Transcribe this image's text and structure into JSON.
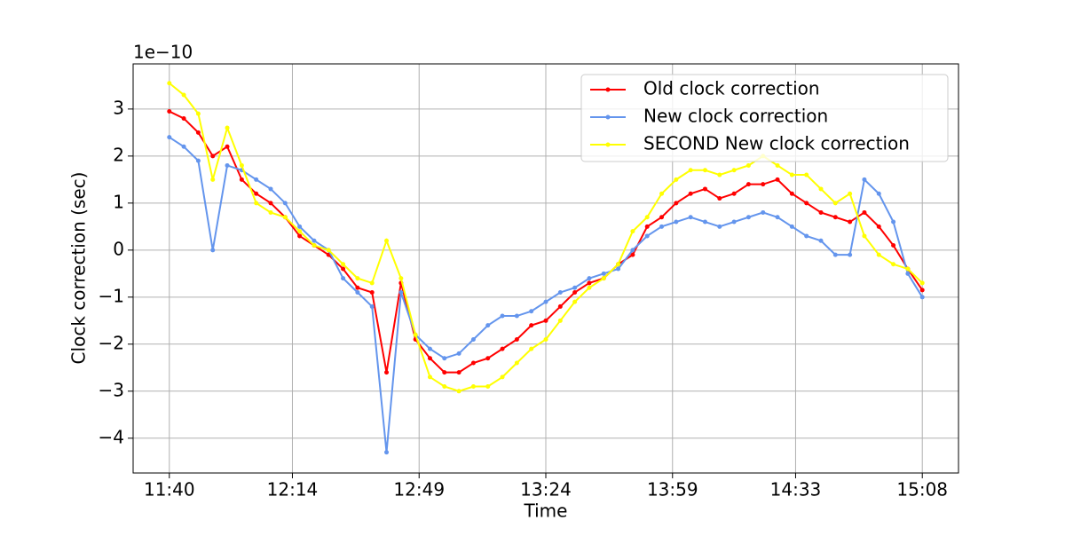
{
  "chart_data": {
    "type": "line",
    "y_label": "Clock correction (sec)",
    "x_label": "Time",
    "y_offset_label": "1e−10",
    "x": [
      "11:40",
      "11:44",
      "11:48",
      "11:52",
      "11:56",
      "12:00",
      "12:04",
      "12:08",
      "12:12",
      "12:16",
      "12:20",
      "12:24",
      "12:28",
      "12:32",
      "12:36",
      "12:40",
      "12:44",
      "12:48",
      "12:52",
      "12:56",
      "13:00",
      "13:04",
      "13:08",
      "13:12",
      "13:16",
      "13:20",
      "13:24",
      "13:28",
      "13:32",
      "13:36",
      "13:40",
      "13:44",
      "13:48",
      "13:52",
      "13:56",
      "14:00",
      "14:04",
      "14:08",
      "14:12",
      "14:16",
      "14:20",
      "14:24",
      "14:28",
      "14:32",
      "14:36",
      "14:40",
      "14:44",
      "14:48",
      "14:52",
      "14:56",
      "15:00",
      "15:04",
      "15:08"
    ],
    "series": [
      {
        "name": "Old clock correction",
        "color": "#ff0000",
        "values": [
          2.95,
          2.8,
          2.5,
          2.0,
          2.2,
          1.5,
          1.2,
          1.0,
          0.7,
          0.3,
          0.1,
          -0.1,
          -0.4,
          -0.8,
          -0.9,
          -2.6,
          -0.7,
          -1.9,
          -2.3,
          -2.6,
          -2.6,
          -2.4,
          -2.3,
          -2.1,
          -1.9,
          -1.6,
          -1.5,
          -1.2,
          -0.9,
          -0.7,
          -0.6,
          -0.3,
          -0.1,
          0.5,
          0.7,
          1.0,
          1.2,
          1.3,
          1.1,
          1.2,
          1.4,
          1.4,
          1.5,
          1.2,
          1.0,
          0.8,
          0.7,
          0.6,
          0.8,
          0.5,
          0.1,
          -0.4,
          -0.85
        ]
      },
      {
        "name": "New clock correction",
        "color": "#6495ed",
        "values": [
          2.4,
          2.2,
          1.9,
          0.0,
          1.8,
          1.7,
          1.5,
          1.3,
          1.0,
          0.5,
          0.2,
          0.0,
          -0.6,
          -0.9,
          -1.2,
          -4.3,
          -0.9,
          -1.8,
          -2.1,
          -2.3,
          -2.2,
          -1.9,
          -1.6,
          -1.4,
          -1.4,
          -1.3,
          -1.1,
          -0.9,
          -0.8,
          -0.6,
          -0.5,
          -0.4,
          0.0,
          0.3,
          0.5,
          0.6,
          0.7,
          0.6,
          0.5,
          0.6,
          0.7,
          0.8,
          0.7,
          0.5,
          0.3,
          0.2,
          -0.1,
          -0.1,
          1.5,
          1.2,
          0.6,
          -0.5,
          -1.0
        ]
      },
      {
        "name": "SECOND New clock correction",
        "color": "#ffff00",
        "values": [
          3.55,
          3.3,
          2.9,
          1.5,
          2.6,
          1.8,
          1.0,
          0.8,
          0.7,
          0.4,
          0.1,
          0.0,
          -0.3,
          -0.6,
          -0.7,
          0.2,
          -0.6,
          -1.8,
          -2.7,
          -2.9,
          -3.0,
          -2.9,
          -2.9,
          -2.7,
          -2.4,
          -2.1,
          -1.9,
          -1.5,
          -1.1,
          -0.8,
          -0.6,
          -0.3,
          0.4,
          0.7,
          1.2,
          1.5,
          1.7,
          1.7,
          1.6,
          1.7,
          1.8,
          2.0,
          1.8,
          1.6,
          1.6,
          1.3,
          1.0,
          1.2,
          0.3,
          -0.1,
          -0.3,
          -0.4,
          -0.7
        ]
      }
    ],
    "xlim": [
      "11:30",
      "15:18"
    ],
    "xticks": [
      "11:40",
      "12:14",
      "12:49",
      "13:24",
      "13:59",
      "14:33",
      "15:08"
    ],
    "ylim": [
      -4.74,
      3.96
    ],
    "yticks": [
      {
        "value": -4,
        "label": "−4"
      },
      {
        "value": -3,
        "label": "−3"
      },
      {
        "value": -2,
        "label": "−2"
      },
      {
        "value": -1,
        "label": "−1"
      },
      0,
      1,
      2,
      3
    ],
    "grid": true,
    "legend": "upper right"
  }
}
